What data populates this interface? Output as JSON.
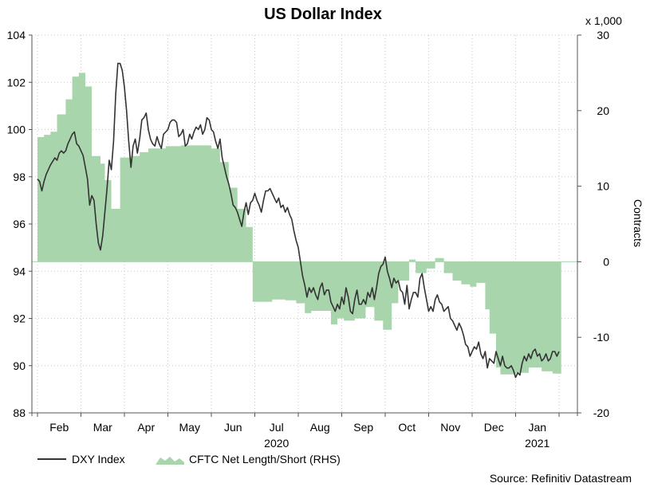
{
  "chart_data": {
    "type": "line",
    "title": "US Dollar Index",
    "source": "Source: Refinitiv Datastream",
    "right_axis_multiplier": "x 1,000",
    "right_axis_label": "Contracts",
    "left_ylim": [
      88,
      104
    ],
    "left_yticks": [
      "88",
      "90",
      "92",
      "94",
      "96",
      "98",
      "100",
      "102",
      "104"
    ],
    "right_ylim": [
      -20,
      30
    ],
    "right_yticks": [
      "-20",
      "-10",
      "0",
      "10",
      "20",
      "30"
    ],
    "xlim": [
      0,
      12.3
    ],
    "months": [
      "Feb",
      "Mar",
      "Apr",
      "May",
      "Jun",
      "Jul",
      "Aug",
      "Sep",
      "Oct",
      "Nov",
      "Dec",
      "Jan"
    ],
    "year_labels": [
      {
        "text": "2020",
        "x": 5.5
      },
      {
        "text": "2021",
        "x": 11.5
      }
    ],
    "grid": true,
    "legend_position": "bottom-left",
    "series": [
      {
        "name": "DXY Index",
        "axis": "left",
        "color": "#333333",
        "points": [
          [
            0.0,
            97.9
          ],
          [
            0.05,
            97.8
          ],
          [
            0.1,
            97.4
          ],
          [
            0.15,
            97.8
          ],
          [
            0.2,
            98.1
          ],
          [
            0.3,
            98.5
          ],
          [
            0.4,
            98.8
          ],
          [
            0.45,
            98.7
          ],
          [
            0.5,
            99.0
          ],
          [
            0.55,
            99.1
          ],
          [
            0.6,
            99.0
          ],
          [
            0.65,
            99.1
          ],
          [
            0.7,
            99.4
          ],
          [
            0.75,
            99.6
          ],
          [
            0.8,
            99.8
          ],
          [
            0.85,
            99.9
          ],
          [
            0.9,
            99.4
          ],
          [
            0.95,
            99.3
          ],
          [
            1.0,
            99.1
          ],
          [
            1.05,
            98.9
          ],
          [
            1.1,
            98.4
          ],
          [
            1.15,
            97.9
          ],
          [
            1.2,
            96.8
          ],
          [
            1.25,
            97.2
          ],
          [
            1.3,
            97.0
          ],
          [
            1.35,
            96.0
          ],
          [
            1.4,
            95.2
          ],
          [
            1.45,
            94.9
          ],
          [
            1.5,
            95.5
          ],
          [
            1.55,
            96.5
          ],
          [
            1.6,
            97.5
          ],
          [
            1.65,
            98.7
          ],
          [
            1.7,
            98.3
          ],
          [
            1.75,
            99.5
          ],
          [
            1.8,
            101.5
          ],
          [
            1.85,
            102.8
          ],
          [
            1.9,
            102.8
          ],
          [
            1.95,
            102.5
          ],
          [
            2.0,
            101.8
          ],
          [
            2.05,
            100.8
          ],
          [
            2.1,
            99.5
          ],
          [
            2.15,
            98.4
          ],
          [
            2.2,
            99.3
          ],
          [
            2.25,
            99.6
          ],
          [
            2.3,
            99.0
          ],
          [
            2.35,
            99.6
          ],
          [
            2.4,
            100.4
          ],
          [
            2.45,
            100.5
          ],
          [
            2.5,
            100.7
          ],
          [
            2.55,
            100.0
          ],
          [
            2.6,
            99.6
          ],
          [
            2.65,
            99.4
          ],
          [
            2.7,
            99.3
          ],
          [
            2.75,
            99.7
          ],
          [
            2.8,
            99.4
          ],
          [
            2.85,
            99.2
          ],
          [
            2.9,
            99.8
          ],
          [
            2.95,
            99.9
          ],
          [
            3.0,
            100.0
          ],
          [
            3.05,
            100.3
          ],
          [
            3.1,
            100.4
          ],
          [
            3.15,
            100.4
          ],
          [
            3.2,
            100.3
          ],
          [
            3.25,
            99.7
          ],
          [
            3.3,
            99.8
          ],
          [
            3.35,
            100.0
          ],
          [
            3.4,
            99.3
          ],
          [
            3.45,
            99.4
          ],
          [
            3.5,
            99.8
          ],
          [
            3.55,
            99.6
          ],
          [
            3.6,
            99.9
          ],
          [
            3.65,
            100.1
          ],
          [
            3.7,
            100.0
          ],
          [
            3.75,
            100.2
          ],
          [
            3.8,
            99.8
          ],
          [
            3.85,
            100.0
          ],
          [
            3.9,
            100.5
          ],
          [
            3.95,
            100.4
          ],
          [
            4.0,
            100.0
          ],
          [
            4.05,
            99.9
          ],
          [
            4.1,
            99.5
          ],
          [
            4.15,
            99.2
          ],
          [
            4.2,
            99.6
          ],
          [
            4.25,
            98.8
          ],
          [
            4.3,
            98.4
          ],
          [
            4.35,
            98.0
          ],
          [
            4.4,
            97.7
          ],
          [
            4.45,
            97.3
          ],
          [
            4.5,
            96.8
          ],
          [
            4.55,
            96.7
          ],
          [
            4.6,
            96.5
          ],
          [
            4.65,
            96.2
          ],
          [
            4.7,
            95.9
          ],
          [
            4.75,
            96.5
          ],
          [
            4.8,
            96.9
          ],
          [
            4.85,
            96.4
          ],
          [
            4.9,
            96.9
          ],
          [
            4.95,
            97.0
          ],
          [
            5.0,
            97.3
          ],
          [
            5.05,
            97.0
          ],
          [
            5.1,
            96.8
          ],
          [
            5.15,
            96.5
          ],
          [
            5.2,
            97.0
          ],
          [
            5.25,
            97.4
          ],
          [
            5.3,
            97.4
          ],
          [
            5.35,
            97.5
          ],
          [
            5.4,
            97.3
          ],
          [
            5.45,
            97.1
          ],
          [
            5.5,
            96.9
          ],
          [
            5.55,
            97.1
          ],
          [
            5.6,
            96.7
          ],
          [
            5.65,
            96.8
          ],
          [
            5.7,
            96.5
          ],
          [
            5.75,
            96.7
          ],
          [
            5.8,
            96.4
          ],
          [
            5.85,
            96.2
          ],
          [
            5.9,
            95.7
          ],
          [
            5.95,
            95.3
          ],
          [
            6.0,
            95.0
          ],
          [
            6.05,
            94.4
          ],
          [
            6.1,
            93.8
          ],
          [
            6.15,
            93.4
          ],
          [
            6.2,
            92.9
          ],
          [
            6.25,
            93.3
          ],
          [
            6.3,
            93.1
          ],
          [
            6.35,
            93.3
          ],
          [
            6.4,
            93.0
          ],
          [
            6.45,
            92.8
          ],
          [
            6.5,
            93.3
          ],
          [
            6.55,
            93.5
          ],
          [
            6.6,
            93.0
          ],
          [
            6.65,
            93.2
          ],
          [
            6.7,
            93.2
          ],
          [
            6.75,
            92.7
          ],
          [
            6.8,
            92.5
          ],
          [
            6.85,
            92.3
          ],
          [
            6.9,
            92.6
          ],
          [
            6.95,
            92.4
          ],
          [
            7.0,
            92.9
          ],
          [
            7.05,
            92.6
          ],
          [
            7.1,
            93.3
          ],
          [
            7.15,
            92.9
          ],
          [
            7.2,
            92.3
          ],
          [
            7.25,
            92.2
          ],
          [
            7.3,
            92.8
          ],
          [
            7.35,
            93.2
          ],
          [
            7.4,
            92.6
          ],
          [
            7.45,
            92.6
          ],
          [
            7.5,
            92.8
          ],
          [
            7.55,
            92.6
          ],
          [
            7.6,
            93.1
          ],
          [
            7.65,
            92.9
          ],
          [
            7.7,
            93.3
          ],
          [
            7.75,
            92.8
          ],
          [
            7.8,
            93.3
          ],
          [
            7.85,
            93.9
          ],
          [
            7.9,
            94.2
          ],
          [
            7.95,
            94.3
          ],
          [
            8.0,
            94.6
          ],
          [
            8.05,
            94.0
          ],
          [
            8.1,
            93.7
          ],
          [
            8.15,
            93.3
          ],
          [
            8.2,
            93.7
          ],
          [
            8.25,
            93.5
          ],
          [
            8.3,
            93.6
          ],
          [
            8.35,
            93.2
          ],
          [
            8.4,
            93.1
          ],
          [
            8.45,
            92.6
          ],
          [
            8.5,
            93.4
          ],
          [
            8.55,
            92.4
          ],
          [
            8.6,
            92.8
          ],
          [
            8.65,
            93.1
          ],
          [
            8.7,
            93.1
          ],
          [
            8.75,
            92.9
          ],
          [
            8.8,
            93.7
          ],
          [
            8.85,
            93.9
          ],
          [
            8.9,
            93.3
          ],
          [
            8.95,
            92.8
          ],
          [
            9.0,
            92.3
          ],
          [
            9.05,
            92.5
          ],
          [
            9.1,
            92.3
          ],
          [
            9.15,
            92.8
          ],
          [
            9.2,
            93.0
          ],
          [
            9.25,
            92.7
          ],
          [
            9.3,
            92.6
          ],
          [
            9.35,
            92.3
          ],
          [
            9.4,
            92.4
          ],
          [
            9.45,
            92.5
          ],
          [
            9.5,
            92.0
          ],
          [
            9.55,
            91.9
          ],
          [
            9.6,
            91.7
          ],
          [
            9.65,
            91.5
          ],
          [
            9.7,
            91.8
          ],
          [
            9.75,
            91.6
          ],
          [
            9.8,
            91.3
          ],
          [
            9.85,
            90.9
          ],
          [
            9.9,
            90.8
          ],
          [
            9.95,
            90.4
          ],
          [
            10.0,
            90.6
          ],
          [
            10.05,
            90.8
          ],
          [
            10.1,
            90.7
          ],
          [
            10.15,
            91.0
          ],
          [
            10.2,
            90.5
          ],
          [
            10.25,
            90.3
          ],
          [
            10.3,
            90.6
          ],
          [
            10.35,
            89.9
          ],
          [
            10.4,
            90.3
          ],
          [
            10.45,
            90.2
          ],
          [
            10.5,
            90.1
          ],
          [
            10.55,
            90.6
          ],
          [
            10.6,
            90.3
          ],
          [
            10.65,
            90.0
          ],
          [
            10.7,
            90.4
          ],
          [
            10.75,
            90.0
          ],
          [
            10.8,
            89.9
          ],
          [
            10.85,
            89.9
          ],
          [
            10.9,
            90.0
          ],
          [
            10.95,
            89.8
          ],
          [
            11.0,
            89.5
          ],
          [
            11.05,
            89.7
          ],
          [
            11.1,
            89.6
          ],
          [
            11.15,
            90.1
          ],
          [
            11.2,
            90.4
          ],
          [
            11.25,
            90.2
          ],
          [
            11.3,
            90.5
          ],
          [
            11.35,
            90.3
          ],
          [
            11.4,
            90.6
          ],
          [
            11.45,
            90.7
          ],
          [
            11.5,
            90.4
          ],
          [
            11.55,
            90.5
          ],
          [
            11.6,
            90.2
          ],
          [
            11.65,
            90.3
          ],
          [
            11.7,
            90.5
          ],
          [
            11.75,
            90.2
          ],
          [
            11.8,
            90.3
          ],
          [
            11.85,
            90.6
          ],
          [
            11.9,
            90.6
          ],
          [
            11.95,
            90.4
          ],
          [
            12.0,
            90.6
          ]
        ]
      },
      {
        "name": "CFTC Net Length/Short (RHS)",
        "axis": "right",
        "color": "#a8d5ac",
        "type": "area",
        "steps": [
          [
            0.0,
            16.5
          ],
          [
            0.15,
            16.8
          ],
          [
            0.3,
            17.2
          ],
          [
            0.45,
            19.5
          ],
          [
            0.65,
            21.5
          ],
          [
            0.8,
            24.5
          ],
          [
            0.95,
            25.0
          ],
          [
            1.1,
            23.2
          ],
          [
            1.25,
            14.0
          ],
          [
            1.45,
            13.0
          ],
          [
            1.55,
            10.8
          ],
          [
            1.7,
            7.0
          ],
          [
            1.9,
            13.8
          ],
          [
            2.15,
            14.0
          ],
          [
            2.35,
            14.5
          ],
          [
            2.55,
            15.0
          ],
          [
            2.95,
            15.3
          ],
          [
            3.3,
            15.4
          ],
          [
            4.0,
            15.0
          ],
          [
            4.2,
            13.2
          ],
          [
            4.4,
            9.8
          ],
          [
            4.6,
            7.0
          ],
          [
            4.8,
            4.6
          ],
          [
            4.95,
            -5.3
          ],
          [
            5.4,
            -5.0
          ],
          [
            5.7,
            -5.1
          ],
          [
            5.95,
            -5.5
          ],
          [
            6.15,
            -6.8
          ],
          [
            6.3,
            -6.5
          ],
          [
            6.55,
            -6.5
          ],
          [
            6.75,
            -8.3
          ],
          [
            6.9,
            -7.5
          ],
          [
            7.05,
            -7.8
          ],
          [
            7.3,
            -7.5
          ],
          [
            7.55,
            -6.0
          ],
          [
            7.75,
            -7.8
          ],
          [
            7.95,
            -9.0
          ],
          [
            8.15,
            -5.5
          ],
          [
            8.3,
            -2.5
          ],
          [
            8.55,
            0.3
          ],
          [
            8.7,
            -1.5
          ],
          [
            8.95,
            -0.9
          ],
          [
            9.15,
            0.5
          ],
          [
            9.35,
            -1.5
          ],
          [
            9.55,
            -2.5
          ],
          [
            9.75,
            -3.0
          ],
          [
            9.95,
            -3.3
          ],
          [
            10.1,
            -2.8
          ],
          [
            10.3,
            -6.3
          ],
          [
            10.4,
            -9.5
          ],
          [
            10.55,
            -14.0
          ],
          [
            10.65,
            -14.9
          ],
          [
            11.0,
            -14.7
          ],
          [
            11.3,
            -14.0
          ],
          [
            11.6,
            -14.5
          ],
          [
            11.85,
            -14.8
          ],
          [
            12.0,
            -14.8
          ]
        ]
      }
    ]
  }
}
